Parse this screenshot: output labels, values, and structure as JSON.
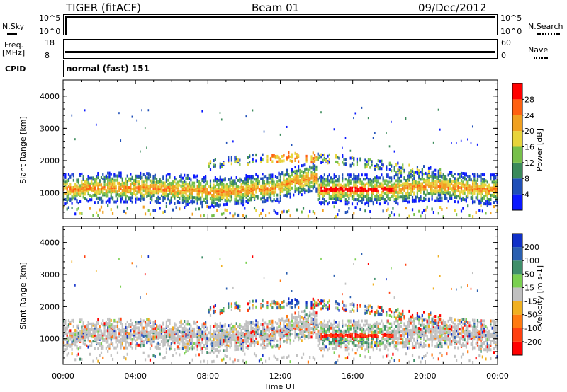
{
  "header": {
    "radar": "TIGER (fitACF)",
    "beam": "Beam 01",
    "date": "09/Dec/2012"
  },
  "left_labels": {
    "nsky": "N.Sky",
    "freq": "Freq.",
    "freq_unit": "[MHz]",
    "cpid": "CPID"
  },
  "right_labels": {
    "nsearch": "N.Search",
    "nave": "Nave"
  },
  "nsky_ticks": [
    "10^5",
    "10^0"
  ],
  "nsearch_ticks": [
    "10^5",
    "10^0"
  ],
  "freq_ticks": [
    "18",
    "8"
  ],
  "nave_ticks": [
    "60",
    "0"
  ],
  "cpid_text": "normal (fast) 151",
  "colors": {
    "power_scale": [
      "#0a18ff",
      "#1f4fb8",
      "#3a8a5a",
      "#77c04a",
      "#e8d43a",
      "#f0a020",
      "#ff6010",
      "#ff0000"
    ],
    "velocity_scale": [
      "#1030c8",
      "#2a5fb0",
      "#3f8f6a",
      "#7ad050",
      "#c0c0c0",
      "#f0b020",
      "#ff7a10",
      "#ff4010",
      "#ff0000"
    ],
    "ground_scatter": "#c0c0c0"
  },
  "chart_data": [
    {
      "type": "heatmap",
      "title": "",
      "xlabel": "",
      "ylabel": "Slant Range [km]",
      "x_ticks": [
        "00:00",
        "04:00",
        "08:00",
        "12:00",
        "16:00",
        "20:00",
        "00:00"
      ],
      "y_ticks": [
        "1000",
        "2000",
        "3000",
        "4000"
      ],
      "xlim": [
        0,
        24
      ],
      "ylim": [
        200,
        4500
      ],
      "colorbar": {
        "label": "Power [dB]",
        "ticks": [
          "4",
          "8",
          "12",
          "16",
          "20",
          "24",
          "28"
        ]
      },
      "features": [
        {
          "name": "main band",
          "x": [
            0,
            24
          ],
          "y_center": 1200,
          "width_km": 500
        },
        {
          "name": "intense echo",
          "x": [
            14.2,
            18.2
          ],
          "y_center": 1150,
          "value_db": 30
        },
        {
          "name": "upper band",
          "x": [
            11,
            14
          ],
          "y_center": 2100,
          "value_db": 22
        }
      ]
    },
    {
      "type": "heatmap",
      "title": "",
      "xlabel": "Time UT",
      "ylabel": "Slant Range [km]",
      "x_ticks": [
        "00:00",
        "04:00",
        "08:00",
        "12:00",
        "16:00",
        "20:00",
        "00:00"
      ],
      "y_ticks": [
        "1000",
        "2000",
        "3000",
        "4000"
      ],
      "xlim": [
        0,
        24
      ],
      "ylim": [
        200,
        4500
      ],
      "colorbar": {
        "label": "Velocity [m s-1]",
        "ticks": [
          "200",
          "100",
          "50",
          "15",
          "-15",
          "-50",
          "-100",
          "-200"
        ]
      },
      "features": [
        {
          "name": "ground scatter",
          "x": [
            0,
            24
          ],
          "y_center": 1100,
          "width_km": 700
        },
        {
          "name": "positive velocity patch",
          "x": [
            12.5,
            13.7
          ],
          "y_center": 2200,
          "value": 250
        },
        {
          "name": "negative velocity patch",
          "x": [
            14.2,
            18
          ],
          "y_center": 1150,
          "value": -150
        }
      ]
    }
  ]
}
